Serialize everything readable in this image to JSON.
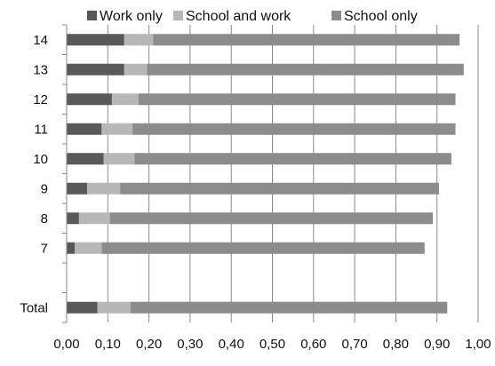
{
  "chart_data": {
    "type": "bar",
    "orientation": "horizontal",
    "stacked": true,
    "categories": [
      "14",
      "13",
      "12",
      "11",
      "10",
      "9",
      "8",
      "7",
      "",
      "Total"
    ],
    "series": [
      {
        "name": "Work only",
        "color": "#595959",
        "values": [
          0.14,
          0.14,
          0.11,
          0.085,
          0.09,
          0.05,
          0.03,
          0.02,
          null,
          0.075
        ]
      },
      {
        "name": "School and work",
        "color": "#b7b7b7",
        "values": [
          0.07,
          0.055,
          0.065,
          0.075,
          0.075,
          0.08,
          0.075,
          0.065,
          null,
          0.08
        ]
      },
      {
        "name": "School only",
        "color": "#8c8c8c",
        "values": [
          0.745,
          0.77,
          0.77,
          0.785,
          0.77,
          0.775,
          0.785,
          0.785,
          null,
          0.77
        ]
      }
    ],
    "xlim": [
      0,
      1
    ],
    "x_ticks": [
      "0,00",
      "0,10",
      "0,20",
      "0,30",
      "0,40",
      "0,50",
      "0,60",
      "0,70",
      "0,80",
      "0,90",
      "1,00"
    ],
    "xlabel": "",
    "ylabel": "",
    "title": "",
    "grid": true,
    "grid_axis": "x",
    "legend_position": "top"
  }
}
